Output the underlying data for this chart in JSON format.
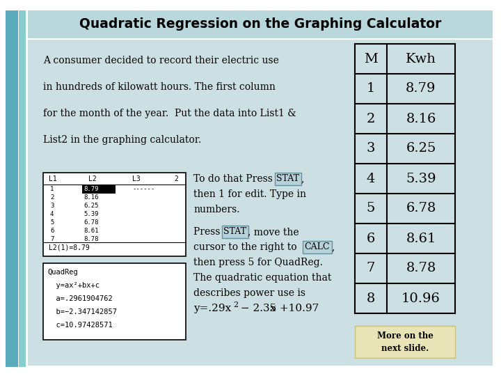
{
  "title": "Quadratic Regression on the Graphing Calculator",
  "title_bg": "#b8d8dc",
  "slide_bg": "#ffffff",
  "left_bar1_color": "#5aaabb",
  "left_bar2_color": "#88cccc",
  "content_bg": "#cce0e4",
  "table_headers": [
    "M",
    "Kwh"
  ],
  "table_rows": [
    [
      "1",
      "8.79"
    ],
    [
      "2",
      "8.16"
    ],
    [
      "3",
      "6.25"
    ],
    [
      "4",
      "5.39"
    ],
    [
      "5",
      "6.78"
    ],
    [
      "6",
      "8.61"
    ],
    [
      "7",
      "8.78"
    ],
    [
      "8",
      "10.96"
    ]
  ],
  "intro_text_lines": [
    "A consumer decided to record their electric use",
    "in hundreds of kilowatt hours. The first column",
    "for the month of the year.  Put the data into List1 &",
    "List2 in the graphing calculator."
  ],
  "l1_vals": [
    "1",
    "2",
    "3",
    "4",
    "5",
    "6",
    "7"
  ],
  "l2_vals": [
    "8.79",
    "8.16",
    "6.25",
    "5.39",
    "6.78",
    "8.61",
    "8.78"
  ],
  "quadreg_lines": [
    "QuadReg",
    "  y=ax²+bx+c",
    "  a=.2961904762",
    "  b=-2.347142857",
    "  c=10.97428571"
  ],
  "more_text": "More on the\nnext slide.",
  "more_bg": "#e8e4b8",
  "more_border": "#c8c080",
  "stat_bg": "#b8d0d8",
  "stat_border": "#6090a0",
  "calc_bg": "#b8d0d8",
  "calc_border": "#6090a0"
}
